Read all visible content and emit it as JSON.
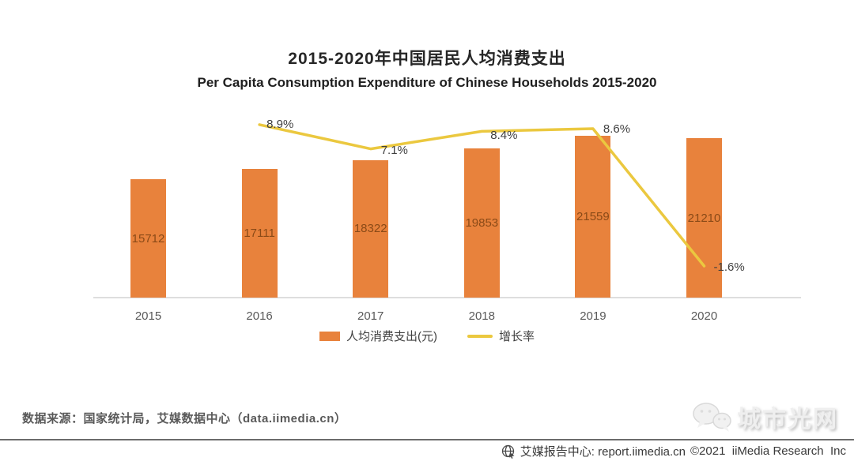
{
  "page": {
    "title": "2015-2020年中国居民人均消费支出",
    "subtitle": "Per Capita Consumption Expenditure of Chinese Households 2015-2020"
  },
  "chart_data": {
    "type": "bar",
    "categories": [
      "2015",
      "2016",
      "2017",
      "2018",
      "2019",
      "2020"
    ],
    "series": [
      {
        "name": "人均消费支出(元)",
        "type": "bar",
        "color": "#E8823C",
        "values": [
          15712,
          17111,
          18322,
          19853,
          21559,
          21210
        ]
      },
      {
        "name": "增长率",
        "type": "line",
        "color": "#EBC83F",
        "values": [
          null,
          8.9,
          7.1,
          8.4,
          8.6,
          -1.6
        ],
        "point_labels": [
          "",
          "8.9%",
          "7.1%",
          "8.4%",
          "8.6%",
          "-1.6%"
        ]
      }
    ],
    "bar_axis_max": 25000,
    "grid": false,
    "legend_position": "bottom"
  },
  "legend": {
    "bar_label": "人均消费支出(元)",
    "line_label": "增长率"
  },
  "source_note": "数据来源：国家统计局，艾媒数据中心（data.iimedia.cn）",
  "footer": {
    "site_label": "艾媒报告中心: report.iimedia.cn",
    "copyright": "©2021  iiMedia Research  Inc"
  },
  "watermark": {
    "text": "城市光网"
  },
  "colors": {
    "bar": "#E8823C",
    "line": "#EBC83F",
    "bar_value_text": "#8A4A17",
    "axis_line": "#DEDEDE",
    "muted_text": "#595959",
    "footer_rule": "#6B6B6B"
  },
  "icons": {
    "footer_logo": "globe-icon",
    "watermark_logo": "chat-bubbles-icon"
  }
}
